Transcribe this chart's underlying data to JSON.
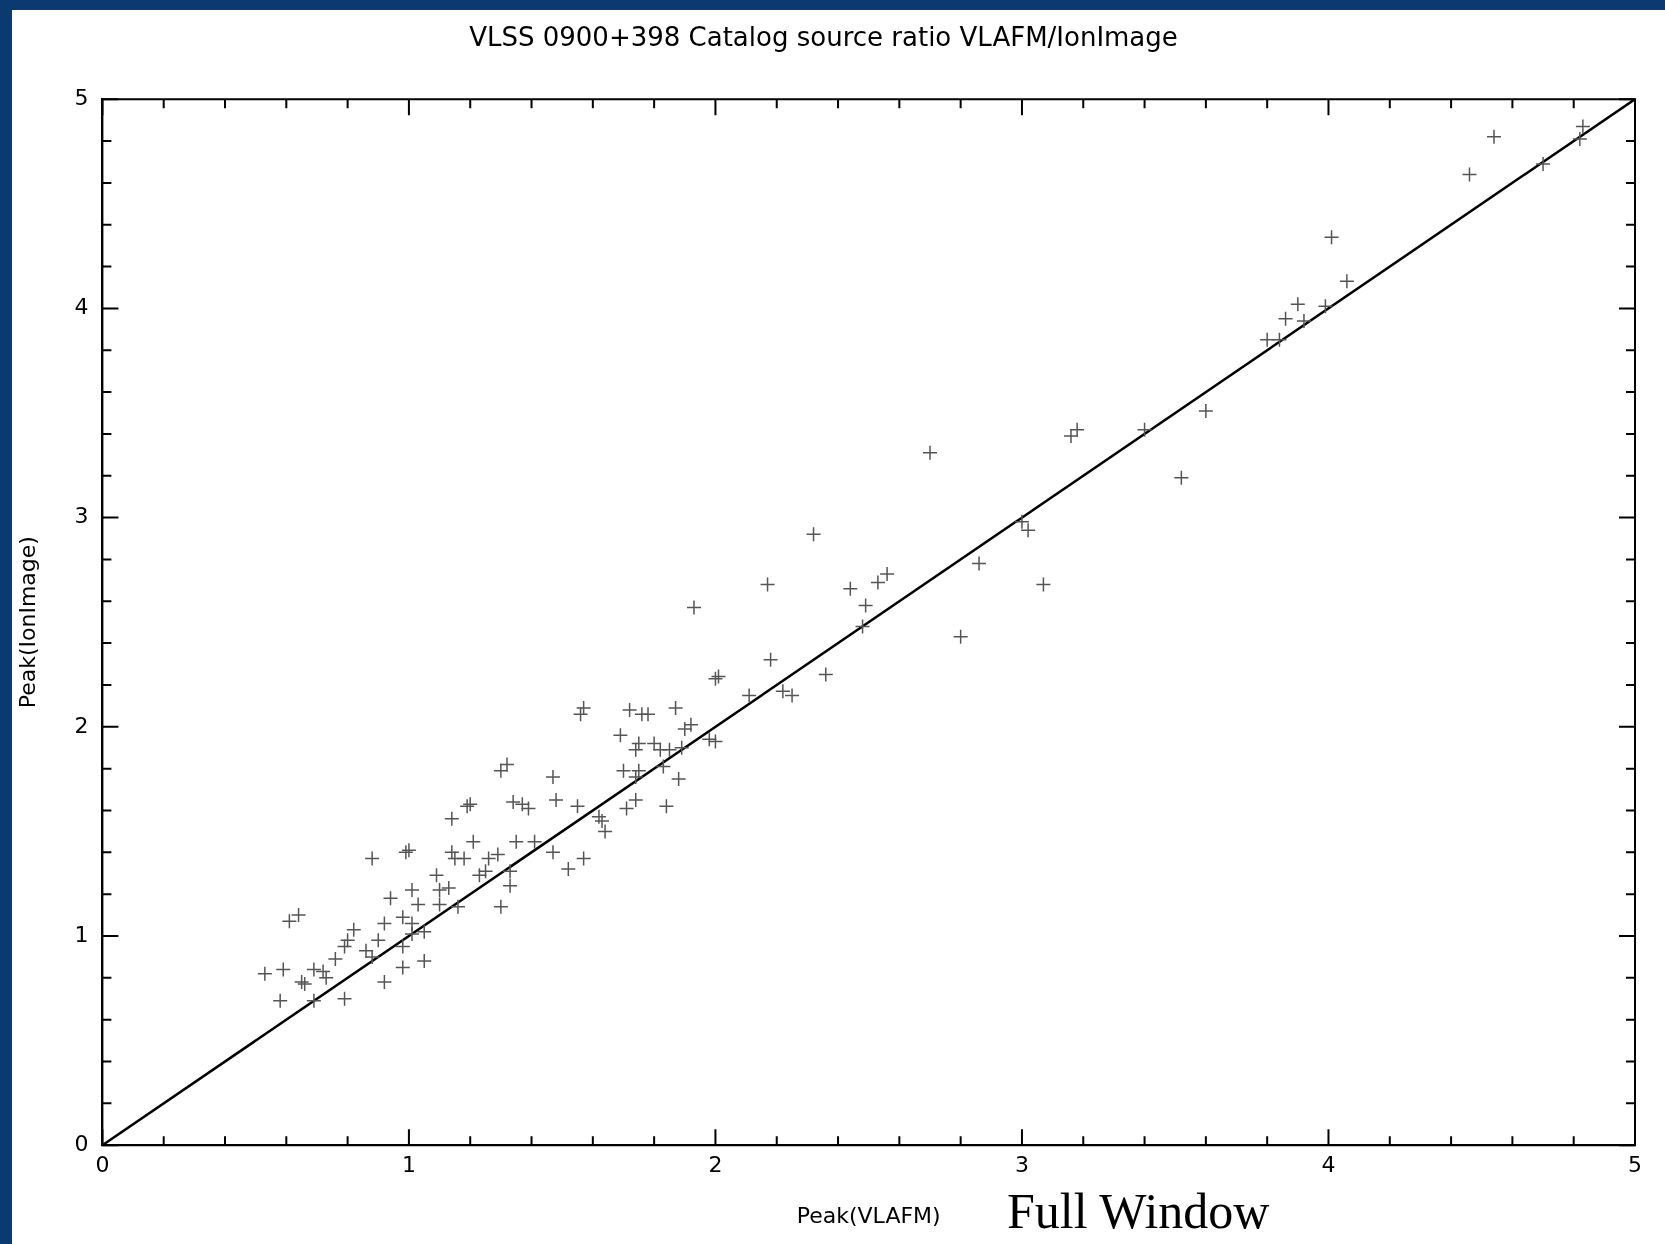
{
  "chart_data": {
    "type": "scatter",
    "title": "VLSS 0900+398 Catalog source ratio VLAFM/IonImage",
    "xlabel": "Peak(VLAFM)",
    "ylabel": "Peak(IonImage)",
    "annotations": [
      "Full Window"
    ],
    "xlim": [
      0,
      5
    ],
    "ylim": [
      0,
      5
    ],
    "xticks": [
      0,
      {
        "value": 0.2,
        "label": null
      },
      {
        "value": 0.4,
        "label": null
      },
      {
        "value": 0.6,
        "label": null
      },
      {
        "value": 0.8,
        "label": null
      },
      1,
      {
        "value": 1.2,
        "label": null
      },
      {
        "value": 1.4,
        "label": null
      },
      {
        "value": 1.6,
        "label": null
      },
      {
        "value": 1.8,
        "label": null
      },
      2,
      {
        "value": 2.2,
        "label": null
      },
      {
        "value": 2.4,
        "label": null
      },
      {
        "value": 2.6,
        "label": null
      },
      {
        "value": 2.8,
        "label": null
      },
      3,
      {
        "value": 3.2,
        "label": null
      },
      {
        "value": 3.4,
        "label": null
      },
      {
        "value": 3.6,
        "label": null
      },
      {
        "value": 3.8,
        "label": null
      },
      4,
      {
        "value": 4.2,
        "label": null
      },
      {
        "value": 4.4,
        "label": null
      },
      {
        "value": 4.6,
        "label": null
      },
      {
        "value": 4.8,
        "label": null
      },
      5
    ],
    "yticks": [
      0,
      {
        "value": 0.2,
        "label": null
      },
      {
        "value": 0.4,
        "label": null
      },
      {
        "value": 0.6,
        "label": null
      },
      {
        "value": 0.8,
        "label": null
      },
      1,
      {
        "value": 1.2,
        "label": null
      },
      {
        "value": 1.4,
        "label": null
      },
      {
        "value": 1.6,
        "label": null
      },
      {
        "value": 1.8,
        "label": null
      },
      2,
      {
        "value": 2.2,
        "label": null
      },
      {
        "value": 2.4,
        "label": null
      },
      {
        "value": 2.6,
        "label": null
      },
      {
        "value": 2.8,
        "label": null
      },
      3,
      {
        "value": 3.2,
        "label": null
      },
      {
        "value": 3.4,
        "label": null
      },
      {
        "value": 3.6,
        "label": null
      },
      {
        "value": 3.8,
        "label": null
      },
      4,
      {
        "value": 4.2,
        "label": null
      },
      {
        "value": 4.4,
        "label": null
      },
      {
        "value": 4.6,
        "label": null
      },
      {
        "value": 4.8,
        "label": null
      },
      5
    ],
    "marker": "cross",
    "series": [
      {
        "color": "#555555",
        "x": [
          0.53,
          0.59,
          0.58,
          0.61,
          0.64,
          0.65,
          0.66,
          0.69,
          0.69,
          0.72,
          0.73,
          0.76,
          0.79,
          0.8,
          0.82,
          0.79,
          0.86,
          0.88,
          0.88,
          0.9,
          0.92,
          0.92,
          0.94,
          0.98,
          0.98,
          0.98,
          0.99,
          1.0,
          1.01,
          1.01,
          1.01,
          1.03,
          1.05,
          1.05,
          1.09,
          1.1,
          1.1,
          1.13,
          1.14,
          1.14,
          1.15,
          1.16,
          1.18,
          1.19,
          1.2,
          1.21,
          1.23,
          1.25,
          1.26,
          1.29,
          1.3,
          1.3,
          1.32,
          1.33,
          1.33,
          1.34,
          1.35,
          1.37,
          1.39,
          1.41,
          1.47,
          1.47,
          1.48,
          1.52,
          1.55,
          1.56,
          1.57,
          1.57,
          1.62,
          1.63,
          1.64,
          1.69,
          1.7,
          1.71,
          1.72,
          1.74,
          1.74,
          1.74,
          1.75,
          1.75,
          1.76,
          1.78,
          1.8,
          1.82,
          1.83,
          1.84,
          1.85,
          1.87,
          1.88,
          1.89,
          1.9,
          1.92,
          1.93,
          1.98,
          2.0,
          2.01,
          2.0,
          2.11,
          2.17,
          2.18,
          2.22,
          2.25,
          2.32,
          2.36,
          2.44,
          2.48,
          2.49,
          2.53,
          2.56,
          2.7,
          2.8,
          2.86,
          3.0,
          3.02,
          3.07,
          3.16,
          3.18,
          3.4,
          3.52,
          3.6,
          3.8,
          3.84,
          3.86,
          3.9,
          3.92,
          3.99,
          4.01,
          4.06,
          4.46,
          4.54,
          4.7,
          4.82,
          4.83
        ],
        "values": [
          0.82,
          0.84,
          0.69,
          1.07,
          1.1,
          0.78,
          0.77,
          0.69,
          0.84,
          0.83,
          0.8,
          0.89,
          0.7,
          0.98,
          1.03,
          0.95,
          0.93,
          1.37,
          0.9,
          0.98,
          0.78,
          1.06,
          1.18,
          1.09,
          0.85,
          0.95,
          1.4,
          1.41,
          1.01,
          1.22,
          1.06,
          1.15,
          1.02,
          0.88,
          1.29,
          1.22,
          1.15,
          1.23,
          1.56,
          1.4,
          1.37,
          1.14,
          1.37,
          1.62,
          1.63,
          1.45,
          1.29,
          1.31,
          1.37,
          1.39,
          1.14,
          1.79,
          1.82,
          1.24,
          1.31,
          1.64,
          1.45,
          1.63,
          1.61,
          1.45,
          1.4,
          1.76,
          1.65,
          1.32,
          1.62,
          2.06,
          2.09,
          1.37,
          1.57,
          1.55,
          1.5,
          1.96,
          1.79,
          1.61,
          2.08,
          1.89,
          1.65,
          1.76,
          1.79,
          1.92,
          2.06,
          2.06,
          1.92,
          1.89,
          1.81,
          1.62,
          1.89,
          2.09,
          1.75,
          1.9,
          1.99,
          2.01,
          2.57,
          1.94,
          2.23,
          2.24,
          1.93,
          2.15,
          2.68,
          2.32,
          2.17,
          2.15,
          2.92,
          2.25,
          2.66,
          2.48,
          2.58,
          2.69,
          2.73,
          3.31,
          2.43,
          2.78,
          2.98,
          2.94,
          2.68,
          3.39,
          3.42,
          3.42,
          3.19,
          3.51,
          3.85,
          3.85,
          3.95,
          4.02,
          3.94,
          4.01,
          4.34,
          4.13,
          4.64,
          4.82,
          4.69,
          4.81,
          4.87
        ]
      },
      {
        "type": "line",
        "color": "#000000",
        "marker": "none",
        "x": [
          0,
          5
        ],
        "values": [
          0,
          5
        ]
      }
    ]
  }
}
